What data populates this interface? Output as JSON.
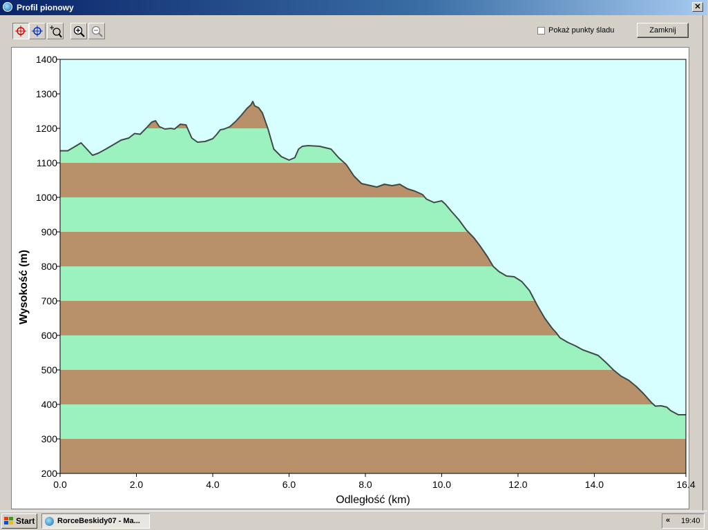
{
  "window": {
    "title": "Profil pionowy",
    "close_glyph": "✕"
  },
  "toolbar": {
    "buttons": [
      {
        "icon": "crosshair-red-icon",
        "pressed": true
      },
      {
        "icon": "crosshair-blue-icon",
        "pressed": false
      },
      {
        "icon": "zoom-region-icon",
        "pressed": false
      },
      {
        "icon": "zoom-in-icon",
        "pressed": false
      },
      {
        "icon": "zoom-out-icon",
        "pressed": false
      }
    ],
    "show_track_points_label": "Pokaż punkty śladu",
    "show_track_points_checked": false,
    "close_label": "Zamknij"
  },
  "chart_data": {
    "type": "area",
    "xlabel": "Odległość   (km)",
    "ylabel": "Wysokość (m)",
    "xlim": [
      0,
      16.4
    ],
    "ylim": [
      200,
      1400
    ],
    "xticks": [
      "0.0",
      "2.0",
      "4.0",
      "6.0",
      "8.0",
      "10.0",
      "12.0",
      "14.0",
      "16.4"
    ],
    "xtick_values": [
      0,
      2,
      4,
      6,
      8,
      10,
      12,
      14,
      16.4
    ],
    "yticks": [
      200,
      300,
      400,
      500,
      600,
      700,
      800,
      900,
      1000,
      1100,
      1200,
      1300,
      1400
    ],
    "band_colors": [
      "#b8916a",
      "#9cf2bf"
    ],
    "sky_color": "#d8ffff",
    "line_color": "#404848",
    "grid": false,
    "x": [
      0,
      0.2,
      0.4,
      0.55,
      0.7,
      0.85,
      1.0,
      1.2,
      1.4,
      1.6,
      1.8,
      1.95,
      2.1,
      2.25,
      2.4,
      2.5,
      2.6,
      2.75,
      2.9,
      3.0,
      3.15,
      3.3,
      3.45,
      3.6,
      3.8,
      4.0,
      4.1,
      4.2,
      4.3,
      4.45,
      4.6,
      4.75,
      4.9,
      5.0,
      5.05,
      5.1,
      5.2,
      5.3,
      5.45,
      5.6,
      5.8,
      6.0,
      6.15,
      6.25,
      6.35,
      6.5,
      6.8,
      7.1,
      7.3,
      7.5,
      7.7,
      7.9,
      8.1,
      8.3,
      8.5,
      8.7,
      8.9,
      9.1,
      9.3,
      9.5,
      9.6,
      9.8,
      10.0,
      10.1,
      10.25,
      10.45,
      10.65,
      10.85,
      11.0,
      11.2,
      11.35,
      11.5,
      11.7,
      11.9,
      12.1,
      12.3,
      12.5,
      12.7,
      12.9,
      13.0,
      13.1,
      13.3,
      13.5,
      13.7,
      13.9,
      14.1,
      14.3,
      14.5,
      14.7,
      14.9,
      15.1,
      15.3,
      15.5,
      15.6,
      15.75,
      15.9,
      16.0,
      16.2,
      16.4
    ],
    "y": [
      1135,
      1135,
      1148,
      1158,
      1140,
      1122,
      1128,
      1140,
      1153,
      1166,
      1172,
      1185,
      1183,
      1200,
      1218,
      1222,
      1205,
      1198,
      1200,
      1198,
      1212,
      1210,
      1172,
      1160,
      1162,
      1170,
      1182,
      1196,
      1198,
      1205,
      1220,
      1238,
      1258,
      1268,
      1278,
      1265,
      1260,
      1245,
      1198,
      1140,
      1118,
      1108,
      1115,
      1140,
      1148,
      1150,
      1148,
      1140,
      1115,
      1095,
      1062,
      1040,
      1035,
      1030,
      1038,
      1034,
      1038,
      1025,
      1018,
      1008,
      995,
      985,
      990,
      980,
      960,
      935,
      905,
      882,
      860,
      828,
      800,
      785,
      772,
      770,
      756,
      730,
      688,
      650,
      620,
      608,
      593,
      580,
      570,
      558,
      550,
      542,
      522,
      500,
      482,
      470,
      452,
      430,
      405,
      395,
      396,
      392,
      382,
      370,
      370
    ]
  },
  "taskbar": {
    "start_label": "Start",
    "task_label": "RorceBeskidy07 - Ma...",
    "tray_chevron": "«",
    "clock": "19:40"
  }
}
